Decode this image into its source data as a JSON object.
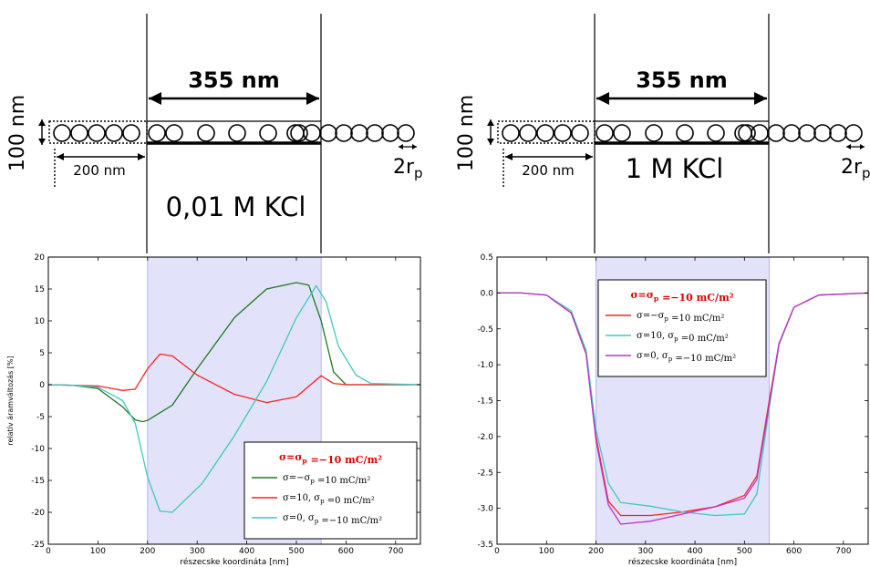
{
  "schematics": [
    {
      "width_label": "355 nm",
      "height_label": "100 nm",
      "offset_label": "200 nm",
      "particle_label": "2r",
      "particle_subscript": "p",
      "salt_label": "0,01 M KCl"
    },
    {
      "width_label": "355 nm",
      "height_label": "100 nm",
      "offset_label": "200 nm",
      "particle_label": "2r",
      "particle_subscript": "p",
      "salt_label": "1 M KCl"
    }
  ],
  "chart_data": [
    {
      "type": "line",
      "xlabel": "részecske koordináta [nm]",
      "ylabel": "relatív áramváltozás [%]",
      "xlim": [
        0,
        750
      ],
      "ylim": [
        -25,
        20
      ],
      "xticks": [
        0,
        100,
        200,
        300,
        400,
        500,
        600,
        700
      ],
      "yticks": [
        -25,
        -20,
        -15,
        -10,
        -5,
        0,
        5,
        10,
        15,
        20
      ],
      "shaded_region": [
        200,
        550
      ],
      "legend_title": "σ=σ_p =−10 mC/m²",
      "legend_position": "lower-right",
      "series": [
        {
          "name": "σ=−σ_p =10 mC/m²",
          "color": "#1e7a1e",
          "x": [
            0,
            50,
            100,
            150,
            175,
            190,
            200,
            250,
            300,
            375,
            440,
            500,
            525,
            550,
            575,
            600,
            650,
            750
          ],
          "y": [
            0,
            -0.1,
            -0.6,
            -3.5,
            -5.5,
            -5.8,
            -5.6,
            -3.2,
            2.5,
            10.5,
            15.0,
            16.0,
            15.6,
            10.0,
            2.0,
            0,
            0,
            0
          ]
        },
        {
          "name": "σ=10, σ_p =0 mC/m²",
          "color": "#ff2020",
          "x": [
            0,
            50,
            100,
            150,
            175,
            200,
            225,
            250,
            300,
            375,
            440,
            500,
            550,
            575,
            600,
            650,
            750
          ],
          "y": [
            0,
            -0.1,
            -0.2,
            -0.9,
            -0.7,
            2.5,
            4.8,
            4.5,
            1.5,
            -1.5,
            -2.8,
            -1.9,
            1.4,
            0.2,
            0,
            0,
            0
          ]
        },
        {
          "name": "σ=0, σ_p =−10 mC/m²",
          "color": "#40c8c0",
          "x": [
            0,
            50,
            100,
            150,
            175,
            200,
            225,
            250,
            310,
            375,
            440,
            500,
            540,
            560,
            585,
            620,
            650,
            750
          ],
          "y": [
            0,
            -0.1,
            -0.4,
            -2.5,
            -6.0,
            -14.5,
            -19.8,
            -20.0,
            -15.5,
            -8.0,
            0.5,
            10.5,
            15.5,
            13.0,
            6.0,
            1.5,
            0.2,
            0
          ]
        }
      ]
    },
    {
      "type": "line",
      "xlabel": "részecske koordináta [nm]",
      "ylabel": "",
      "xlim": [
        0,
        750
      ],
      "ylim": [
        -3.5,
        0.5
      ],
      "xticks": [
        0,
        100,
        200,
        300,
        400,
        500,
        600,
        700
      ],
      "yticks": [
        -3.5,
        -3.0,
        -2.5,
        -2.0,
        -1.5,
        -1.0,
        -0.5,
        0.0,
        0.5
      ],
      "shaded_region": [
        200,
        550
      ],
      "legend_title": "σ=σ_p =−10 mC/m²",
      "legend_position": "upper-center",
      "series": [
        {
          "name": "σ=−σ_p =10 mC/m²",
          "color": "#ff2020",
          "x": [
            0,
            50,
            100,
            150,
            180,
            200,
            225,
            250,
            310,
            375,
            440,
            500,
            525,
            550,
            570,
            600,
            650,
            750
          ],
          "y": [
            0,
            0,
            -0.03,
            -0.28,
            -0.85,
            -2.0,
            -2.9,
            -3.1,
            -3.1,
            -3.05,
            -2.98,
            -2.82,
            -2.55,
            -1.5,
            -0.7,
            -0.2,
            -0.03,
            0
          ]
        },
        {
          "name": "σ=10, σ_p =0 mC/m²",
          "color": "#40c8c0",
          "x": [
            0,
            50,
            100,
            150,
            180,
            200,
            225,
            250,
            310,
            375,
            440,
            500,
            525,
            550,
            570,
            600,
            650,
            750
          ],
          "y": [
            0,
            0,
            -0.03,
            -0.25,
            -0.8,
            -1.9,
            -2.65,
            -2.92,
            -2.97,
            -3.05,
            -3.1,
            -3.08,
            -2.8,
            -1.6,
            -0.72,
            -0.2,
            -0.03,
            0
          ]
        },
        {
          "name": "σ=0, σ_p =−10 mC/m²",
          "color": "#c030c8",
          "x": [
            0,
            50,
            100,
            150,
            180,
            200,
            225,
            250,
            310,
            375,
            440,
            500,
            525,
            550,
            570,
            600,
            650,
            750
          ],
          "y": [
            0,
            0,
            -0.03,
            -0.28,
            -0.85,
            -2.05,
            -2.95,
            -3.22,
            -3.18,
            -3.08,
            -2.98,
            -2.86,
            -2.6,
            -1.55,
            -0.7,
            -0.2,
            -0.03,
            0
          ]
        }
      ]
    }
  ]
}
